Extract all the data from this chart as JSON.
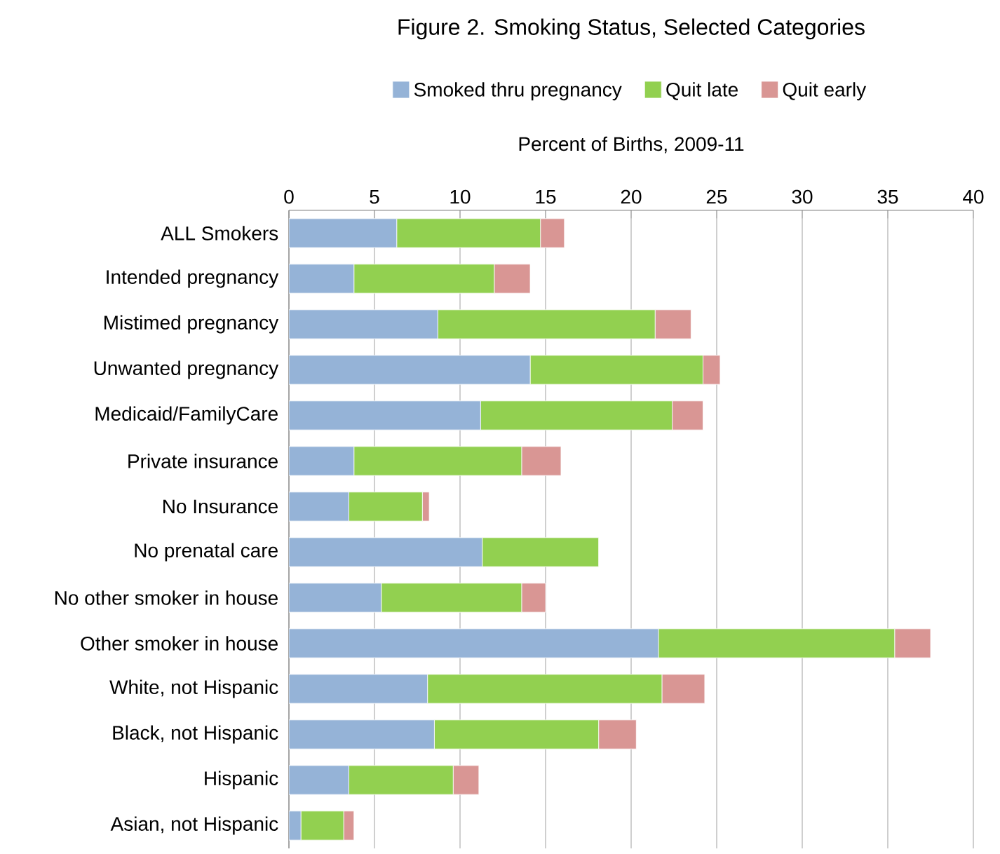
{
  "chart_data": {
    "type": "bar",
    "orientation": "horizontal",
    "stacked": true,
    "title": "Figure 2. Smoking Status, Selected Categories",
    "xlabel": "Percent of Births, 2009-11",
    "categories": [
      "ALL Smokers",
      "Intended pregnancy",
      "Mistimed pregnancy",
      "Unwanted pregnancy",
      "Medicaid/FamilyCare",
      "Private insurance",
      "No Insurance",
      "No prenatal care",
      "No other smoker in house",
      "Other smoker in house",
      "White, not Hispanic",
      "Black, not Hispanic",
      "Hispanic",
      "Asian, not Hispanic"
    ],
    "series": [
      {
        "name": "Smoked thru pregnancy",
        "color": "#95b3d7",
        "values": [
          6.3,
          3.8,
          8.7,
          14.1,
          11.2,
          3.8,
          3.5,
          11.3,
          5.4,
          21.6,
          8.1,
          8.5,
          3.5,
          0.7
        ]
      },
      {
        "name": "Quit late",
        "color": "#92d050",
        "values": [
          8.4,
          8.2,
          12.7,
          10.1,
          11.2,
          9.8,
          4.3,
          6.8,
          8.2,
          13.8,
          13.7,
          9.6,
          6.1,
          2.5
        ]
      },
      {
        "name": "Quit early",
        "color": "#d99694",
        "values": [
          1.4,
          2.1,
          2.1,
          1.0,
          1.8,
          2.3,
          0.4,
          0,
          1.4,
          2.1,
          2.5,
          2.2,
          1.5,
          0.6
        ]
      }
    ],
    "xlim": [
      0,
      40
    ],
    "xticks": [
      0,
      5,
      10,
      15,
      20,
      25,
      30,
      35,
      40
    ],
    "grid": "x",
    "legend": "top"
  }
}
